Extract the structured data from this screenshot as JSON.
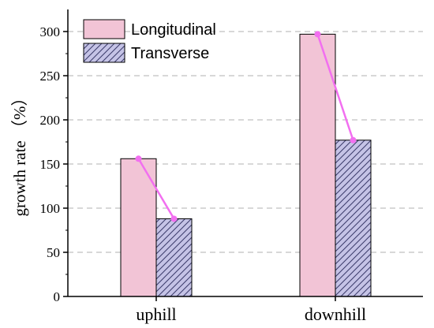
{
  "chart_data": {
    "type": "bar",
    "title": "",
    "xlabel": "",
    "ylabel": "growth rate （%）",
    "categories": [
      "uphill",
      "downhill"
    ],
    "series": [
      {
        "name": "Longitudinal",
        "values": [
          156,
          297
        ],
        "fill": "#f2c4d6",
        "hatch": false
      },
      {
        "name": "Transverse",
        "values": [
          88,
          177
        ],
        "fill": "#c5c3e6",
        "hatch": true,
        "hatch_color": "#3a3a6a"
      }
    ],
    "ylim": [
      0,
      325
    ],
    "yticks": [
      0,
      50,
      100,
      150,
      200,
      250,
      300
    ],
    "grid": "horizontal dashed",
    "legend_position": "top-left",
    "connector_lines": {
      "color": "#f26ff0",
      "marker": "circle"
    },
    "axis_color": "#000000",
    "grid_color": "#b0b0b0"
  }
}
